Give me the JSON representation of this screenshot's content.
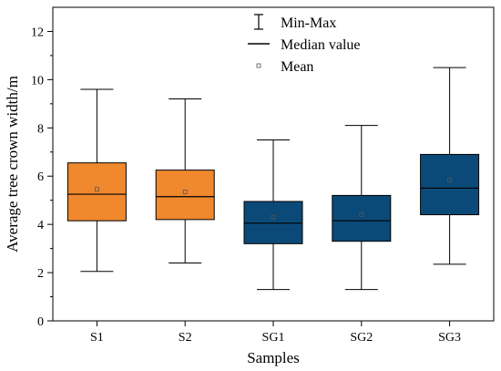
{
  "chart_data": {
    "type": "box",
    "xlabel": "Samples",
    "ylabel": "Average tree crown width/m",
    "ylim": [
      0,
      13
    ],
    "yticks": [
      0,
      2,
      4,
      6,
      8,
      10,
      12
    ],
    "grid": false,
    "legend_position": "top-right",
    "legend": [
      {
        "symbol": "whisker",
        "label": "Min-Max"
      },
      {
        "symbol": "line",
        "label": "Median value"
      },
      {
        "symbol": "square",
        "label": "Mean"
      }
    ],
    "categories": [
      "S1",
      "S2",
      "SG1",
      "SG2",
      "SG3"
    ],
    "boxes": [
      {
        "label": "S1",
        "min": 2.05,
        "q1": 4.15,
        "median": 5.25,
        "q3": 6.55,
        "max": 9.6,
        "mean": 5.45,
        "color": "#F0882E"
      },
      {
        "label": "S2",
        "min": 2.4,
        "q1": 4.2,
        "median": 5.15,
        "q3": 6.25,
        "max": 9.2,
        "mean": 5.35,
        "color": "#F0882E"
      },
      {
        "label": "SG1",
        "min": 1.3,
        "q1": 3.2,
        "median": 4.05,
        "q3": 4.95,
        "max": 7.5,
        "mean": 4.3,
        "color": "#0B4A78"
      },
      {
        "label": "SG2",
        "min": 1.3,
        "q1": 3.3,
        "median": 4.15,
        "q3": 5.2,
        "max": 8.1,
        "mean": 4.4,
        "color": "#0B4A78"
      },
      {
        "label": "SG3",
        "min": 2.35,
        "q1": 4.4,
        "median": 5.5,
        "q3": 6.9,
        "max": 10.5,
        "mean": 5.85,
        "color": "#0B4A78"
      }
    ]
  }
}
